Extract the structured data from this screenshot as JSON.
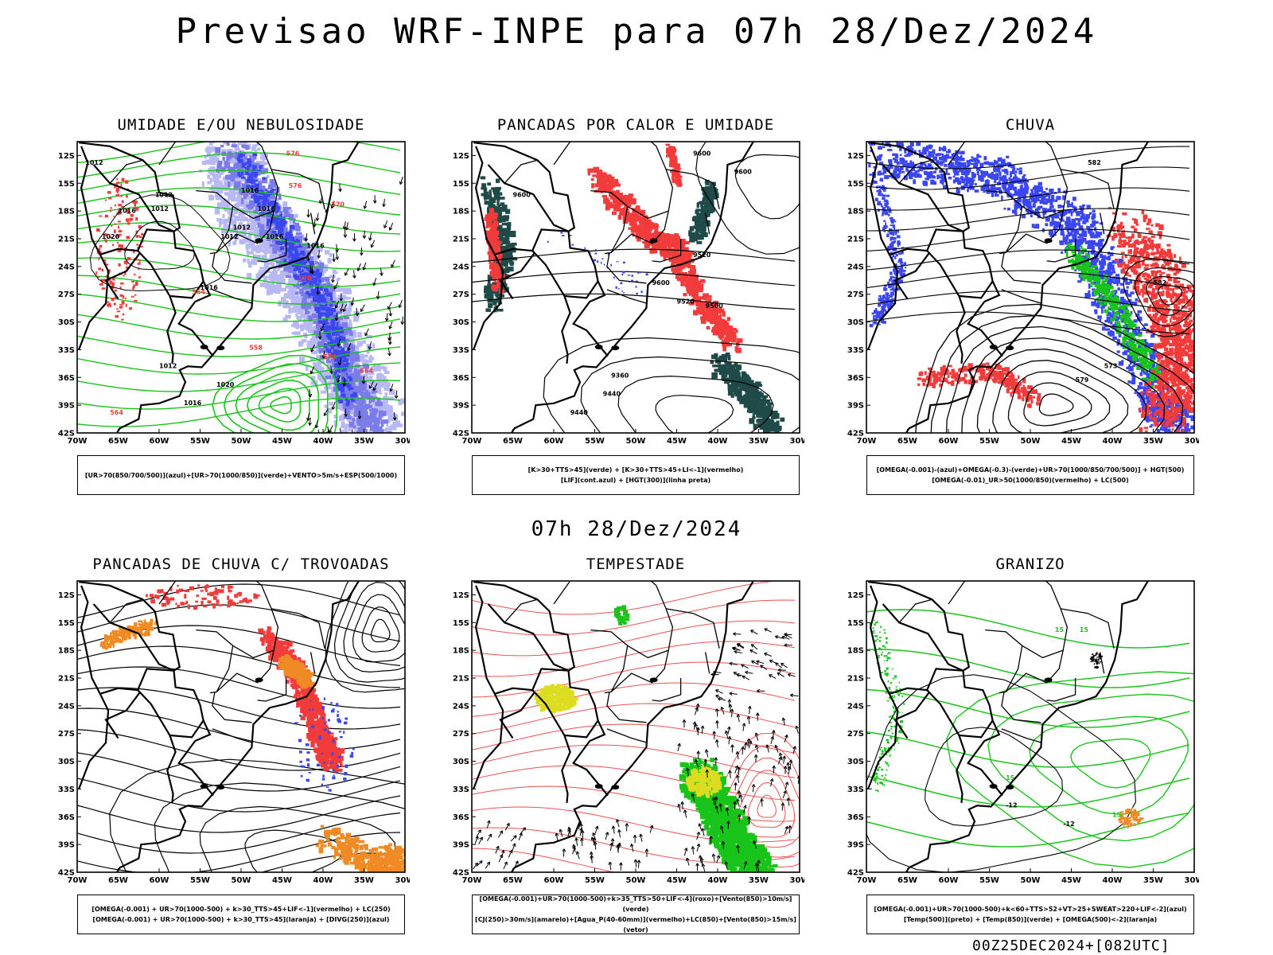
{
  "title": "Previsao WRF-INPE  para 07h 28/Dez/2024",
  "mid_date": "07h 28/Dez/2024",
  "footer_code": "00Z25DEC2024+[082UTC]",
  "colors": {
    "blue": "#3a46f0",
    "lightblue": "#b8b8f4",
    "midblue": "#7c7ce8",
    "green": "#19c41a",
    "red": "#f23b3b",
    "orange": "#f08a24",
    "yellow": "#dcdc20",
    "darkteal": "#1f4a48",
    "black": "#000000"
  },
  "chart_data": [
    {
      "type": "map",
      "title": "UMIDADE E/OU NEBULOSIDADE",
      "legend": [
        "[UR>70(850/700/500)](azul)+[UR>70(1000/850)](verde)+VENTO>5m/s+ESP(500/1000)"
      ],
      "lat_ticks": [
        "12S",
        "15S",
        "18S",
        "21S",
        "24S",
        "27S",
        "30S",
        "33S",
        "36S",
        "39S",
        "42S"
      ],
      "lon_ticks": [
        "70W",
        "65W",
        "60W",
        "55W",
        "50W",
        "45W",
        "40W",
        "35W",
        "30W"
      ],
      "contour_labels": [
        "1012",
        "1012",
        "1012",
        "1016",
        "1020",
        "1012",
        "1012",
        "1016",
        "1016",
        "1016",
        "1016",
        "1016",
        "1012",
        "1016",
        "1020",
        "570",
        "576",
        "576",
        "570",
        "570",
        "564",
        "564",
        "564",
        "558"
      ]
    },
    {
      "type": "map",
      "title": "PANCADAS POR CALOR E UMIDADE",
      "legend": [
        "[K>30+TTS>45](verde) + [K>30+TTS>45+LI<-1](vermelho)",
        "[LIF](cont.azul) + [HGT(300)](linha preta)"
      ],
      "lat_ticks": [
        "12S",
        "15S",
        "18S",
        "21S",
        "24S",
        "27S",
        "30S",
        "33S",
        "36S",
        "39S",
        "42S"
      ],
      "lon_ticks": [
        "70W",
        "65W",
        "60W",
        "55W",
        "50W",
        "45W",
        "40W",
        "35W",
        "30W"
      ],
      "contour_labels": [
        "9600",
        "9600",
        "9600",
        "9520",
        "9600",
        "9520",
        "9440",
        "9360",
        "9440",
        "9500"
      ]
    },
    {
      "type": "map",
      "title": "CHUVA",
      "legend": [
        "[OMEGA(-0.001)-(azul)+OMEGA(-0.3)-(verde)+UR>70(1000/850/700/500)] + HGT(500)",
        "[OMEGA(-0.01)_UR>50(1000/850)(vermelho) + LC(500)"
      ],
      "lat_ticks": [
        "12S",
        "15S",
        "18S",
        "21S",
        "24S",
        "27S",
        "30S",
        "33S",
        "36S",
        "39S",
        "42S"
      ],
      "lon_ticks": [
        "70W",
        "65W",
        "60W",
        "55W",
        "50W",
        "45W",
        "40W",
        "35W",
        "30W"
      ],
      "contour_labels": [
        "582",
        "582",
        "573",
        "579"
      ]
    },
    {
      "type": "map",
      "title": "PANCADAS DE CHUVA C/ TROVOADAS",
      "legend": [
        "[OMEGA(-0.001) + UR>70(1000-500) + k>30_TTS>45+LIF<-1](vermelho) + LC(250)",
        "[OMEGA(-0.001) + UR>70(1000-500) + k>30_TTS>45](laranja) + [DIVG(250)](azul)"
      ],
      "lat_ticks": [
        "12S",
        "15S",
        "18S",
        "21S",
        "24S",
        "27S",
        "30S",
        "33S",
        "36S",
        "39S",
        "42S"
      ],
      "lon_ticks": [
        "70W",
        "65W",
        "60W",
        "55W",
        "50W",
        "45W",
        "40W",
        "35W",
        "30W"
      ],
      "contour_labels": []
    },
    {
      "type": "map",
      "title": "TEMPESTADE",
      "legend": [
        "[OMEGA(-0.001)+UR>70(1000-500)+k>35_TTS>50+LIF<-4](roxo)+[Vento(850)>10m/s](verde)",
        "[CJ(250)>30m/s](amarelo)+[Agua_P(40-60mm)](vermelho)+LC(850)+[Vento(850)>15m/s](vetor)"
      ],
      "lat_ticks": [
        "12S",
        "15S",
        "18S",
        "21S",
        "24S",
        "27S",
        "30S",
        "33S",
        "36S",
        "39S",
        "42S"
      ],
      "lon_ticks": [
        "70W",
        "65W",
        "60W",
        "55W",
        "50W",
        "45W",
        "40W",
        "35W",
        "30W"
      ],
      "contour_labels": []
    },
    {
      "type": "map",
      "title": "GRANIZO",
      "legend": [
        "[OMEGA(-0.001)+UR>70(1000-500)+k<60+TTS>52+VT>25+SWEAT>220+LIF<-2](azul)",
        "[Temp(500)](preto) + [Temp(850)](verde) + [OMEGA(500)<-2](laranja)"
      ],
      "lat_ticks": [
        "12S",
        "15S",
        "18S",
        "21S",
        "24S",
        "27S",
        "30S",
        "33S",
        "36S",
        "39S",
        "42S"
      ],
      "lon_ticks": [
        "70W",
        "65W",
        "60W",
        "55W",
        "50W",
        "45W",
        "40W",
        "35W",
        "30W"
      ],
      "contour_labels": [
        "-12",
        "-12",
        "15",
        "15",
        "15",
        "15"
      ]
    }
  ]
}
